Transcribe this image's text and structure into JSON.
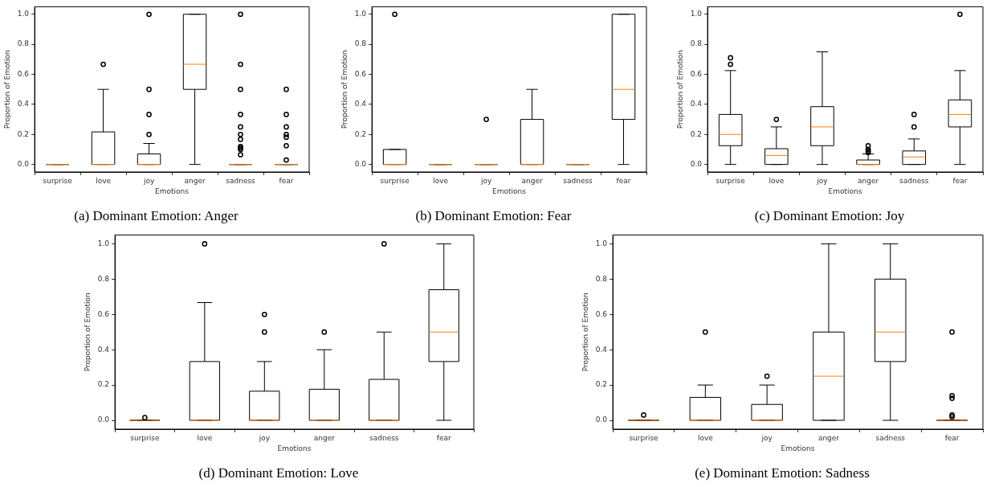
{
  "chart_data": [
    {
      "type": "box",
      "title": "(a) Dominant Emotion: Anger",
      "xlabel": "Emotions",
      "ylabel": "Proportion of Emotion",
      "categories": [
        "surprise",
        "love",
        "joy",
        "anger",
        "sadness",
        "fear"
      ],
      "ylim": [
        -0.05,
        1.05
      ],
      "yticks": [
        {
          "value": 0,
          "label": "0.0"
        },
        {
          "value": 0.2,
          "label": "0.2"
        },
        {
          "value": 0.4,
          "label": "0.4"
        },
        {
          "value": 0.6,
          "label": "0.6"
        },
        {
          "value": 0.8,
          "label": "0.8"
        },
        {
          "value": 1,
          "label": "1.0"
        }
      ],
      "grid": false,
      "series": [
        {
          "color": "#000000",
          "boxes": [
            {
              "low": 0,
              "q1": 0,
              "median": 0,
              "q3": 0,
              "high": 0
            },
            {
              "low": 0,
              "q1": 0,
              "median": 0,
              "q3": 0.217,
              "high": 0.5,
              "outliers": [
                0.667
              ]
            },
            {
              "low": 0,
              "q1": 0,
              "median": 0,
              "q3": 0.07,
              "high": 0.14,
              "outliers": [
                0.2,
                0.333,
                0.5,
                1.0
              ]
            },
            {
              "low": 0,
              "q1": 0.5,
              "median": 0.667,
              "q3": 1.0,
              "high": 1.0
            },
            {
              "low": 0,
              "q1": 0,
              "median": 0,
              "q3": 0,
              "high": 0,
              "outliers": [
                0.065,
                0.1,
                0.11,
                0.12,
                0.167,
                0.2,
                0.25,
                0.333,
                0.5,
                0.667,
                1.0
              ]
            },
            {
              "low": 0,
              "q1": 0,
              "median": 0,
              "q3": 0,
              "high": 0,
              "outliers": [
                0.03,
                0.125,
                0.182,
                0.2,
                0.25,
                0.333,
                0.5
              ]
            }
          ]
        }
      ]
    },
    {
      "type": "box",
      "title": "(b) Dominant Emotion: Fear",
      "xlabel": "Emotions",
      "ylabel": "Proportion of Emotion",
      "categories": [
        "surprise",
        "love",
        "joy",
        "anger",
        "sadness",
        "fear"
      ],
      "ylim": [
        -0.05,
        1.05
      ],
      "yticks": [
        {
          "value": 0,
          "label": "0.0"
        },
        {
          "value": 0.2,
          "label": "0.2"
        },
        {
          "value": 0.4,
          "label": "0.4"
        },
        {
          "value": 0.6,
          "label": "0.6"
        },
        {
          "value": 0.8,
          "label": "0.8"
        },
        {
          "value": 1,
          "label": "1.0"
        }
      ],
      "grid": false,
      "series": [
        {
          "color": "#000000",
          "boxes": [
            {
              "low": 0,
              "q1": 0,
              "median": 0,
              "q3": 0.1,
              "high": 0.1,
              "outliers": [
                1.0
              ]
            },
            {
              "low": 0,
              "q1": 0,
              "median": 0,
              "q3": 0,
              "high": 0
            },
            {
              "low": 0,
              "q1": 0,
              "median": 0,
              "q3": 0,
              "high": 0,
              "outliers": [
                0.3
              ]
            },
            {
              "low": 0,
              "q1": 0,
              "median": 0,
              "q3": 0.3,
              "high": 0.5
            },
            {
              "low": 0,
              "q1": 0,
              "median": 0,
              "q3": 0,
              "high": 0
            },
            {
              "low": 0,
              "q1": 0.3,
              "median": 0.5,
              "q3": 1.0,
              "high": 1.0
            }
          ]
        }
      ]
    },
    {
      "type": "box",
      "title": "(c) Dominant Emotion: Joy",
      "xlabel": "Emotions",
      "ylabel": "Proportion of Emotion",
      "categories": [
        "surprise",
        "love",
        "joy",
        "anger",
        "sadness",
        "fear"
      ],
      "ylim": [
        -0.05,
        1.05
      ],
      "yticks": [
        {
          "value": 0,
          "label": "0.0"
        },
        {
          "value": 0.2,
          "label": "0.2"
        },
        {
          "value": 0.4,
          "label": "0.4"
        },
        {
          "value": 0.6,
          "label": "0.6"
        },
        {
          "value": 0.8,
          "label": "0.8"
        },
        {
          "value": 1,
          "label": "1.0"
        }
      ],
      "grid": false,
      "series": [
        {
          "color": "#000000",
          "boxes": [
            {
              "low": 0,
              "q1": 0.125,
              "median": 0.2,
              "q3": 0.333,
              "high": 0.625,
              "outliers": [
                0.667,
                0.71
              ]
            },
            {
              "low": 0,
              "q1": 0,
              "median": 0.06,
              "q3": 0.105,
              "high": 0.25,
              "outliers": [
                0.3
              ]
            },
            {
              "low": 0,
              "q1": 0.125,
              "median": 0.25,
              "q3": 0.385,
              "high": 0.75
            },
            {
              "low": 0,
              "q1": 0,
              "median": 0,
              "q3": 0.03,
              "high": 0.07,
              "outliers": [
                0.08,
                0.09,
                0.1,
                0.125
              ]
            },
            {
              "low": 0,
              "q1": 0,
              "median": 0.05,
              "q3": 0.09,
              "high": 0.17,
              "outliers": [
                0.25,
                0.333
              ]
            },
            {
              "low": 0,
              "q1": 0.25,
              "median": 0.333,
              "q3": 0.43,
              "high": 0.625,
              "outliers": [
                1.0
              ]
            }
          ]
        }
      ]
    },
    {
      "type": "box",
      "title": "(d) Dominant Emotion: Love",
      "xlabel": "Emotions",
      "ylabel": "Proportion of Emotion",
      "categories": [
        "surprise",
        "love",
        "joy",
        "anger",
        "sadness",
        "fear"
      ],
      "ylim": [
        -0.05,
        1.05
      ],
      "yticks": [
        {
          "value": 0,
          "label": "0.0"
        },
        {
          "value": 0.2,
          "label": "0.2"
        },
        {
          "value": 0.4,
          "label": "0.4"
        },
        {
          "value": 0.6,
          "label": "0.6"
        },
        {
          "value": 0.8,
          "label": "0.8"
        },
        {
          "value": 1,
          "label": "1.0"
        }
      ],
      "grid": false,
      "series": [
        {
          "color": "#000000",
          "boxes": [
            {
              "low": 0,
              "q1": 0,
              "median": 0,
              "q3": 0,
              "high": 0,
              "outliers": [
                0.015
              ]
            },
            {
              "low": 0,
              "q1": 0,
              "median": 0,
              "q3": 0.333,
              "high": 0.667,
              "outliers": [
                1.0
              ]
            },
            {
              "low": 0,
              "q1": 0,
              "median": 0,
              "q3": 0.165,
              "high": 0.333,
              "outliers": [
                0.5,
                0.6
              ]
            },
            {
              "low": 0,
              "q1": 0,
              "median": 0,
              "q3": 0.176,
              "high": 0.4,
              "outliers": [
                0.5
              ]
            },
            {
              "low": 0,
              "q1": 0,
              "median": 0,
              "q3": 0.232,
              "high": 0.5,
              "outliers": [
                1.0
              ]
            },
            {
              "low": 0,
              "q1": 0.333,
              "median": 0.5,
              "q3": 0.74,
              "high": 1.0
            }
          ]
        }
      ]
    },
    {
      "type": "box",
      "title": "(e) Dominant Emotion: Sadness",
      "xlabel": "Emotions",
      "ylabel": "Proportion of Emotion",
      "categories": [
        "surprise",
        "love",
        "joy",
        "anger",
        "sadness",
        "fear"
      ],
      "ylim": [
        -0.05,
        1.05
      ],
      "yticks": [
        {
          "value": 0,
          "label": "0.0"
        },
        {
          "value": 0.2,
          "label": "0.2"
        },
        {
          "value": 0.4,
          "label": "0.4"
        },
        {
          "value": 0.6,
          "label": "0.6"
        },
        {
          "value": 0.8,
          "label": "0.8"
        },
        {
          "value": 1,
          "label": "1.0"
        }
      ],
      "grid": false,
      "series": [
        {
          "color": "#000000",
          "boxes": [
            {
              "low": 0,
              "q1": 0,
              "median": 0,
              "q3": 0,
              "high": 0,
              "outliers": [
                0.03
              ]
            },
            {
              "low": 0,
              "q1": 0,
              "median": 0,
              "q3": 0.13,
              "high": 0.2,
              "outliers": [
                0.5
              ]
            },
            {
              "low": 0,
              "q1": 0,
              "median": 0,
              "q3": 0.09,
              "high": 0.2,
              "outliers": [
                0.25
              ]
            },
            {
              "low": 0,
              "q1": 0,
              "median": 0.25,
              "q3": 0.5,
              "high": 1.0
            },
            {
              "low": 0,
              "q1": 0.333,
              "median": 0.5,
              "q3": 0.8,
              "high": 1.0
            },
            {
              "low": 0,
              "q1": 0,
              "median": 0,
              "q3": 0,
              "high": 0,
              "outliers": [
                0.02,
                0.03,
                0.125,
                0.14,
                0.5
              ]
            }
          ]
        }
      ]
    }
  ]
}
